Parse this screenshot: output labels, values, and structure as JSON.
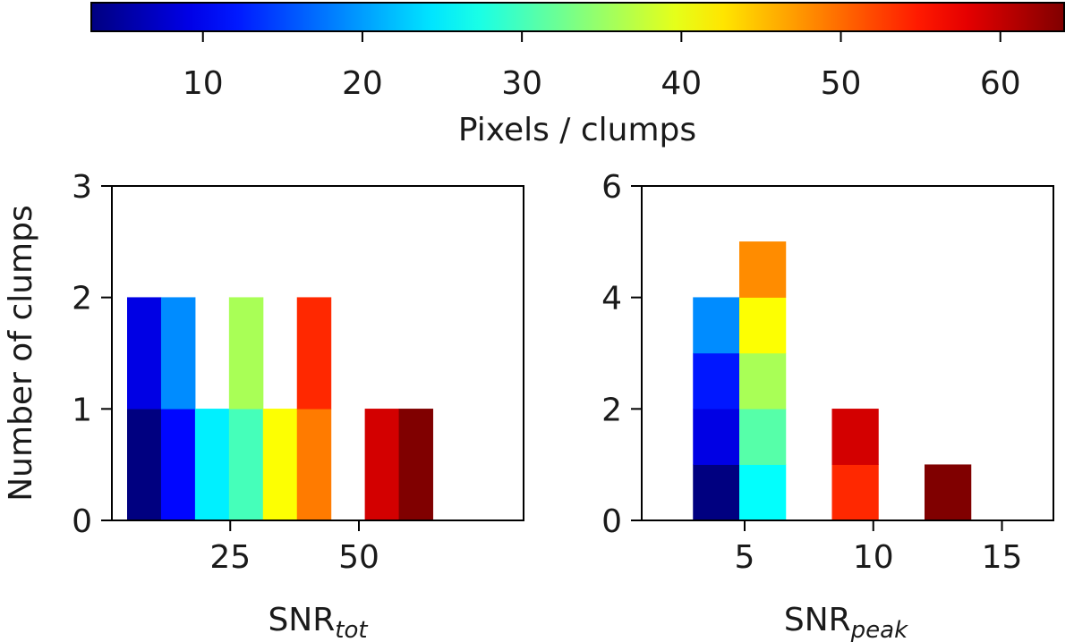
{
  "colorbar": {
    "label": "Pixels / clumps",
    "range": [
      3,
      64
    ],
    "ticks": [
      10,
      20,
      30,
      40,
      50,
      60
    ],
    "tick_labels": [
      "10",
      "20",
      "30",
      "40",
      "50",
      "60"
    ],
    "colormap": "jet"
  },
  "chart_data": [
    {
      "type": "bar",
      "subtype": "stacked-histogram",
      "title": "",
      "xlabel_main": "SNR",
      "xlabel_sub": "tot",
      "ylabel": "Number of clumps",
      "xlim": [
        2,
        82
      ],
      "ylim": [
        0,
        3
      ],
      "xticks": [
        25,
        50
      ],
      "xtick_labels": [
        "25",
        "50"
      ],
      "yticks": [
        0,
        1,
        2,
        3
      ],
      "ytick_labels": [
        "0",
        "1",
        "2",
        "3"
      ],
      "bin_width": 6.6,
      "bins": [
        {
          "x0": 5.0,
          "segments": [
            {
              "count": 1,
              "color_value": 3
            },
            {
              "count": 1,
              "color_value": 9
            }
          ]
        },
        {
          "x0": 11.6,
          "segments": [
            {
              "count": 1,
              "color_value": 11
            },
            {
              "count": 1,
              "color_value": 19
            }
          ]
        },
        {
          "x0": 18.2,
          "segments": [
            {
              "count": 1,
              "color_value": 25
            }
          ]
        },
        {
          "x0": 24.8,
          "segments": [
            {
              "count": 1,
              "color_value": 30
            },
            {
              "count": 1,
              "color_value": 36
            }
          ]
        },
        {
          "x0": 31.4,
          "segments": [
            {
              "count": 1,
              "color_value": 41
            }
          ]
        },
        {
          "x0": 38.0,
          "segments": [
            {
              "count": 1,
              "color_value": 49
            },
            {
              "count": 1,
              "color_value": 54
            }
          ]
        },
        {
          "x0": 51.2,
          "segments": [
            {
              "count": 1,
              "color_value": 59
            }
          ]
        },
        {
          "x0": 57.8,
          "segments": [
            {
              "count": 1,
              "color_value": 64
            }
          ]
        }
      ]
    },
    {
      "type": "bar",
      "subtype": "stacked-histogram",
      "title": "",
      "xlabel_main": "SNR",
      "xlabel_sub": "peak",
      "ylabel": "",
      "xlim": [
        1.0,
        17.0
      ],
      "ylim": [
        0,
        6
      ],
      "xticks": [
        5,
        10,
        15
      ],
      "xtick_labels": [
        "5",
        "10",
        "15"
      ],
      "yticks": [
        0,
        2,
        4,
        6
      ],
      "ytick_labels": [
        "0",
        "2",
        "4",
        "6"
      ],
      "bin_width": 1.8,
      "bins": [
        {
          "x0": 3.0,
          "segments": [
            {
              "count": 1,
              "color_value": 3
            },
            {
              "count": 1,
              "color_value": 9
            },
            {
              "count": 1,
              "color_value": 12
            },
            {
              "count": 1,
              "color_value": 19
            }
          ]
        },
        {
          "x0": 4.8,
          "segments": [
            {
              "count": 1,
              "color_value": 26
            },
            {
              "count": 1,
              "color_value": 31
            },
            {
              "count": 1,
              "color_value": 36
            },
            {
              "count": 1,
              "color_value": 41
            },
            {
              "count": 1,
              "color_value": 48
            }
          ]
        },
        {
          "x0": 8.4,
          "segments": [
            {
              "count": 1,
              "color_value": 54
            },
            {
              "count": 1,
              "color_value": 59
            }
          ]
        },
        {
          "x0": 12.0,
          "segments": [
            {
              "count": 1,
              "color_value": 64
            }
          ]
        }
      ]
    }
  ]
}
